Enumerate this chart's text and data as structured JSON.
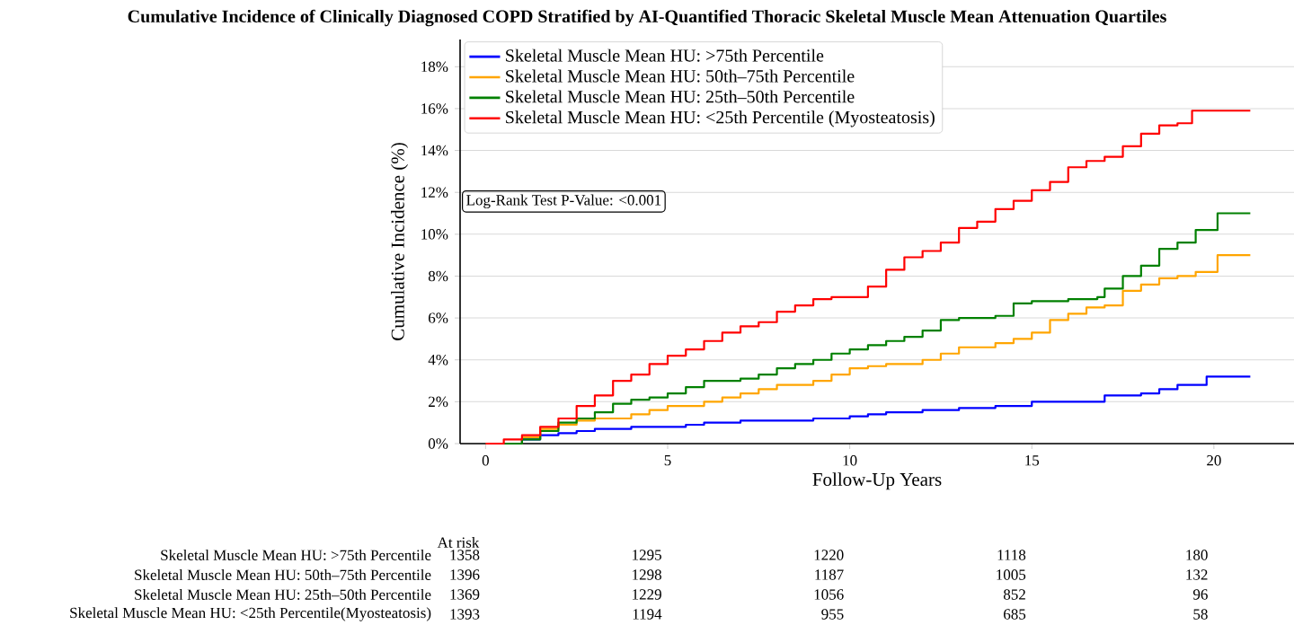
{
  "chart_data": {
    "type": "step",
    "title": "Cumulative Incidence of Clinically Diagnosed COPD Stratified by AI-Quantified Thoracic Skeletal Muscle Mean Attenuation Quartiles",
    "xlabel": "Follow-Up Years",
    "ylabel": "Cumulative Incidence (%)",
    "xlim": [
      -0.7,
      22.2
    ],
    "ylim": [
      0,
      19.3
    ],
    "xticks": [
      0,
      5,
      10,
      15,
      20
    ],
    "yticks": [
      {
        "value": 0,
        "label": "0%"
      },
      {
        "value": 2,
        "label": "2%"
      },
      {
        "value": 4,
        "label": "4%"
      },
      {
        "value": 6,
        "label": "6%"
      },
      {
        "value": 8,
        "label": "8%"
      },
      {
        "value": 10,
        "label": "10%"
      },
      {
        "value": 12,
        "label": "12%"
      },
      {
        "value": 14,
        "label": "14%"
      },
      {
        "value": 16,
        "label": "16%"
      },
      {
        "value": 18,
        "label": "18%"
      }
    ],
    "grid": "y",
    "legend": "top left",
    "series": [
      {
        "name": "Skeletal Muscle Mean HU: >75th Percentile",
        "color": "#0000ff",
        "x": [
          0,
          1,
          1.5,
          2,
          2.5,
          3,
          4,
          5,
          5.5,
          6,
          7,
          8,
          9,
          10,
          10.5,
          11,
          12,
          13,
          14,
          15,
          16,
          16.5,
          17,
          18,
          18.5,
          19,
          19.8,
          21
        ],
        "values": [
          0,
          0.2,
          0.4,
          0.5,
          0.6,
          0.7,
          0.8,
          0.8,
          0.9,
          1.0,
          1.1,
          1.1,
          1.2,
          1.3,
          1.4,
          1.5,
          1.6,
          1.7,
          1.8,
          2.0,
          2.0,
          2.0,
          2.3,
          2.4,
          2.6,
          2.8,
          3.2,
          3.2
        ]
      },
      {
        "name": "Skeletal Muscle Mean HU: 50th–75th Percentile",
        "color": "#ffa500",
        "x": [
          0,
          1,
          1.5,
          2,
          2.5,
          3,
          4,
          4.5,
          5,
          6,
          6.5,
          7,
          7.5,
          8,
          9,
          9.5,
          10,
          10.5,
          11,
          12,
          12.5,
          13,
          14,
          14.5,
          15,
          15.5,
          16,
          16.5,
          17,
          17.5,
          18,
          18.5,
          19,
          19.5,
          20.1,
          21
        ],
        "values": [
          0,
          0.3,
          0.7,
          0.9,
          1.1,
          1.2,
          1.4,
          1.6,
          1.8,
          2.0,
          2.2,
          2.4,
          2.6,
          2.8,
          3.0,
          3.3,
          3.6,
          3.7,
          3.8,
          4.0,
          4.3,
          4.6,
          4.8,
          5.0,
          5.3,
          5.9,
          6.2,
          6.5,
          6.6,
          7.3,
          7.6,
          7.9,
          8.0,
          8.2,
          9.0,
          9.0
        ]
      },
      {
        "name": "Skeletal Muscle Mean HU: 25th–50th Percentile",
        "color": "#008000",
        "x": [
          0,
          1,
          1.5,
          2,
          2.5,
          3,
          3.5,
          4,
          4.5,
          5,
          5.5,
          6,
          7,
          7.5,
          8,
          8.5,
          9,
          9.5,
          10,
          10.5,
          11,
          11.5,
          12,
          12.5,
          13,
          14,
          14.5,
          15,
          16,
          16.8,
          17,
          17.5,
          18,
          18.5,
          19,
          19.5,
          20.1,
          21
        ],
        "values": [
          0,
          0.2,
          0.6,
          1.0,
          1.2,
          1.5,
          1.9,
          2.1,
          2.2,
          2.4,
          2.7,
          3.0,
          3.1,
          3.3,
          3.6,
          3.8,
          4.0,
          4.3,
          4.5,
          4.7,
          4.9,
          5.1,
          5.4,
          5.9,
          6.0,
          6.1,
          6.7,
          6.8,
          6.9,
          7.0,
          7.4,
          8.0,
          8.5,
          9.3,
          9.6,
          10.2,
          11.0,
          11.0
        ]
      },
      {
        "name": "Skeletal Muscle Mean HU: <25th Percentile (Myosteatosis)",
        "color": "#ff0000",
        "x": [
          0,
          0.5,
          1,
          1.5,
          2,
          2.5,
          3,
          3.5,
          4,
          4.5,
          5,
          5.5,
          6,
          6.5,
          7,
          7.5,
          8,
          8.5,
          9,
          9.5,
          10,
          10.5,
          11,
          11.5,
          12,
          12.5,
          13,
          13.5,
          14,
          14.5,
          15,
          15.5,
          16,
          16.5,
          17,
          17.5,
          18,
          18.5,
          19,
          19.4,
          21
        ],
        "values": [
          0,
          0.2,
          0.4,
          0.8,
          1.2,
          1.8,
          2.3,
          3.0,
          3.3,
          3.8,
          4.2,
          4.5,
          4.9,
          5.3,
          5.6,
          5.8,
          6.3,
          6.6,
          6.9,
          7.0,
          7.0,
          7.5,
          8.3,
          8.9,
          9.2,
          9.6,
          10.3,
          10.6,
          11.2,
          11.6,
          12.1,
          12.5,
          13.2,
          13.5,
          13.7,
          14.2,
          14.8,
          15.2,
          15.3,
          15.9,
          15.9
        ]
      }
    ],
    "annotations": [
      "Log-Rank Test P-Value: <0.001",
      "At risk",
      "Skeletal Muscle Mean HU: >75th Percentile",
      "Skeletal Muscle Mean HU: 50th–75th Percentile",
      "Skeletal Muscle Mean HU: 25th–50th Percentile",
      "Skeletal Muscle Mean HU: <25th Percentile(Myosteatosis)",
      "1358",
      "1295",
      "1220",
      "1118",
      "180",
      "1396",
      "1298",
      "1187",
      "1005",
      "132",
      "1369",
      "1229",
      "1056",
      "852",
      "96",
      "1393",
      "1194",
      "955",
      "685",
      "58"
    ]
  }
}
